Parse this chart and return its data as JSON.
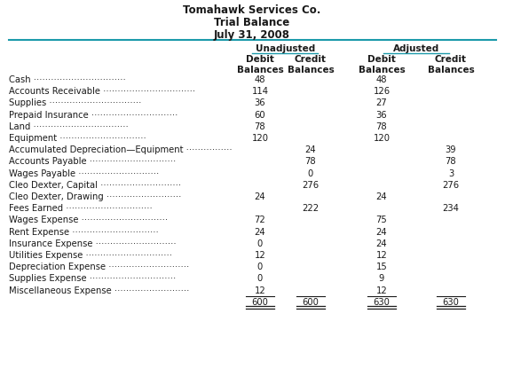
{
  "title_line1": "Tomahawk Services Co.",
  "title_line2": "Trial Balance",
  "title_line3": "July 31, 2008",
  "accounts": [
    "Cash",
    "Accounts Receivable",
    "Supplies",
    "Prepaid Insurance",
    "Land",
    "Equipment",
    "Accumulated Depreciation—Equipment",
    "Accounts Payable",
    "Wages Payable",
    "Cleo Dexter, Capital",
    "Cleo Dexter, Drawing",
    "Fees Earned",
    "Wages Expense",
    "Rent Expense",
    "Insurance Expense",
    "Utilities Expense",
    "Depreciation Expense",
    "Supplies Expense",
    "Miscellaneous Expense"
  ],
  "dots_count": [
    32,
    32,
    32,
    30,
    33,
    30,
    16,
    30,
    28,
    28,
    26,
    30,
    30,
    30,
    28,
    30,
    28,
    30,
    26
  ],
  "unadj_debit": [
    "48",
    "114",
    "36",
    "60",
    "78",
    "120",
    "",
    "",
    "",
    "",
    "24",
    "",
    "72",
    "24",
    "0",
    "12",
    "0",
    "0",
    "12"
  ],
  "unadj_credit": [
    "",
    "",
    "",
    "",
    "",
    "",
    "24",
    "78",
    "0",
    "276",
    "",
    "222",
    "",
    "",
    "",
    "",
    "",
    "",
    ""
  ],
  "adj_debit": [
    "48",
    "126",
    "27",
    "36",
    "78",
    "120",
    "",
    "",
    "",
    "",
    "24",
    "",
    "75",
    "24",
    "24",
    "12",
    "15",
    "9",
    "12"
  ],
  "adj_credit": [
    "",
    "",
    "",
    "",
    "",
    "",
    "39",
    "78",
    "3",
    "276",
    "",
    "234",
    "",
    "",
    "",
    "",
    "",
    "",
    ""
  ],
  "total_unadj_debit": "600",
  "total_unadj_credit": "600",
  "total_adj_debit": "630",
  "total_adj_credit": "630",
  "accent_color": "#1B9AAA",
  "text_color": "#1a1a1a",
  "bg_color": "#ffffff",
  "fs_title": 8.5,
  "fs_header": 7.5,
  "fs_body": 7.2
}
